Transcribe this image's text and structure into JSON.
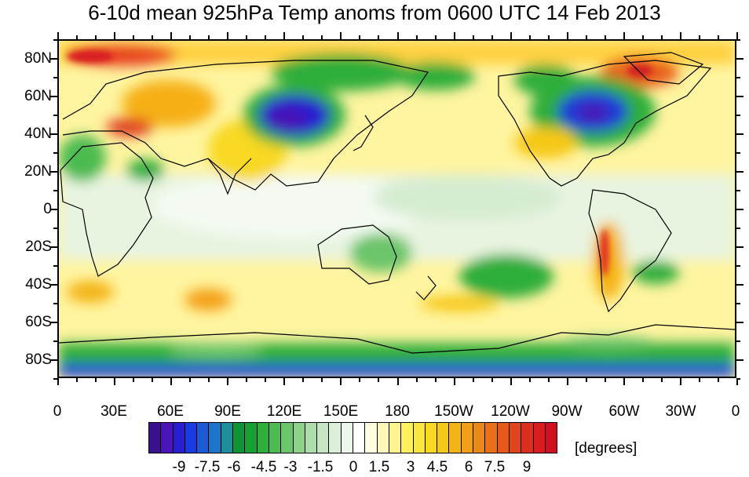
{
  "title": "6-10d mean 925hPa Temp anoms from 0600 UTC 14 Feb 2013",
  "map": {
    "lat_labels": [
      "80N",
      "60N",
      "40N",
      "20N",
      "0",
      "20S",
      "40S",
      "60S",
      "80S"
    ],
    "lon_labels": [
      "0",
      "30E",
      "60E",
      "90E",
      "120E",
      "150E",
      "180",
      "150W",
      "120W",
      "90W",
      "60W",
      "30W",
      "0"
    ]
  },
  "colorbar": {
    "units": "[degrees]",
    "labels": [
      "-9",
      "-7.5",
      "-6",
      "-4.5",
      "-3",
      "-1.5",
      "0",
      "1.5",
      "3",
      "4.5",
      "6",
      "7.5",
      "9"
    ],
    "colors": [
      "#3c0f8c",
      "#4a15b5",
      "#2a1fd0",
      "#1a3be0",
      "#1d5ad8",
      "#1e74c8",
      "#1e8f9a",
      "#119438",
      "#1aa032",
      "#2fae3b",
      "#4cbb50",
      "#6cc56a",
      "#8dd088",
      "#acdcaa",
      "#c6e6c3",
      "#dcefd8",
      "#ecf6ea",
      "#ffffff",
      "#fffde0",
      "#fff8b8",
      "#fff490",
      "#fff060",
      "#fbe640",
      "#f8d820",
      "#f6c818",
      "#f4b418",
      "#f0a018",
      "#ec8818",
      "#e87018",
      "#e45a1a",
      "#e0441c",
      "#dc2e1e",
      "#d81c20",
      "#d01020"
    ]
  }
}
